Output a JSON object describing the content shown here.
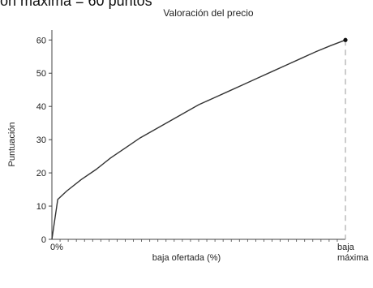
{
  "page": {
    "top_text_partial": "ón máxima = 60 puntos"
  },
  "chart_data": {
    "type": "line",
    "title": "Valoración del precio",
    "xlabel": "baja ofertada (%)",
    "ylabel": "Puntuación",
    "x_tick_labels": {
      "start": "0%",
      "end_line1": "baja",
      "end_line2": "máxima"
    },
    "y_ticks": [
      0,
      10,
      20,
      30,
      40,
      50,
      60
    ],
    "xlim": [
      0,
      1
    ],
    "ylim": [
      0,
      63
    ],
    "series": [
      {
        "x": [
          0,
          0.02,
          0.05,
          0.1,
          0.15,
          0.2,
          0.25,
          0.3,
          0.35,
          0.4,
          0.45,
          0.5,
          0.55,
          0.6,
          0.65,
          0.7,
          0.75,
          0.8,
          0.85,
          0.9,
          0.95,
          1.0
        ],
        "y": [
          0,
          12,
          14.5,
          18,
          21,
          24.5,
          27.5,
          30.5,
          33,
          35.5,
          38,
          40.5,
          42.5,
          44.5,
          46.5,
          48.5,
          50.5,
          52.5,
          54.5,
          56.5,
          58.3,
          60
        ]
      }
    ],
    "end_marker": {
      "x": 1.0,
      "y": 60
    },
    "grid": false,
    "colors": {
      "line": "#333333",
      "axis": "#444444",
      "dashed": "#999999"
    }
  }
}
